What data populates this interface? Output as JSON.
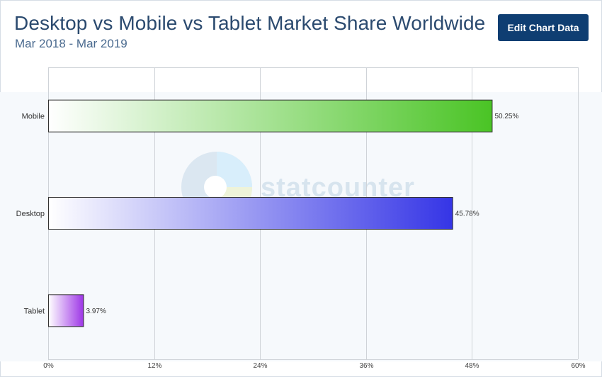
{
  "header": {
    "title": "Desktop vs Mobile vs Tablet Market Share Worldwide",
    "subtitle": "Mar 2018 - Mar 2019",
    "edit_button_label": "Edit Chart Data"
  },
  "watermark": {
    "text": "statcounter"
  },
  "chart_data": {
    "type": "bar",
    "orientation": "horizontal",
    "title": "Desktop vs Mobile vs Tablet Market Share Worldwide",
    "subtitle": "Mar 2018 - Mar 2019",
    "categories": [
      "Mobile",
      "Desktop",
      "Tablet"
    ],
    "values": [
      50.25,
      45.78,
      3.97
    ],
    "value_labels": [
      "50.25%",
      "45.78%",
      "3.97%"
    ],
    "colors": [
      "#4ac425",
      "#3535e6",
      "#9d35e6"
    ],
    "xlim": [
      0,
      60
    ],
    "x_ticks": [
      0,
      12,
      24,
      36,
      48,
      60
    ],
    "x_tick_labels": [
      "0%",
      "12%",
      "24%",
      "36%",
      "48%",
      "60%"
    ],
    "grid": true,
    "legend": "none"
  }
}
